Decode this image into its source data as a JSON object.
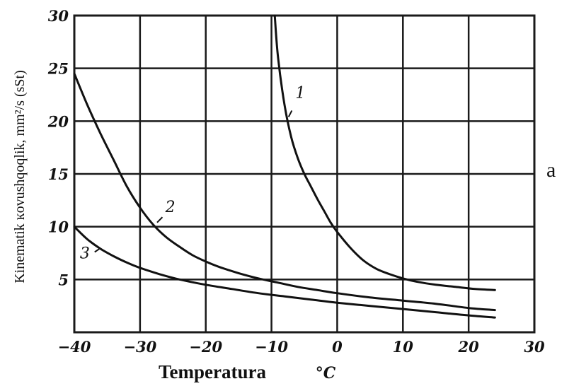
{
  "chart_data": {
    "type": "line",
    "xlabel": "Temperatura",
    "x_unit": "°C",
    "ylabel": "Kinematik ĸovushqoqlik, mm²/s (sSt)",
    "xlim": [
      -40,
      30
    ],
    "ylim": [
      0,
      30
    ],
    "x_ticks": [
      "-40",
      "-30",
      "-20",
      "-10",
      "0",
      "10",
      "20",
      "30"
    ],
    "y_ticks": [
      "5",
      "10",
      "15",
      "20",
      "25",
      "30"
    ],
    "grid": true,
    "series": [
      {
        "name": "1",
        "x": [
          -9.5,
          -9,
          -8,
          -7,
          -6,
          -5,
          -4,
          -3,
          -2,
          -1,
          0,
          2,
          4,
          6,
          8,
          10,
          12,
          15,
          18,
          21,
          24
        ],
        "y": [
          30,
          26,
          21.5,
          18.5,
          16.5,
          15,
          13.8,
          12.6,
          11.5,
          10.4,
          9.5,
          8,
          6.8,
          6,
          5.5,
          5.1,
          4.8,
          4.5,
          4.3,
          4.1,
          4.0
        ]
      },
      {
        "name": "2",
        "x": [
          -40,
          -38,
          -36,
          -34,
          -32,
          -30,
          -28,
          -26,
          -24,
          -22,
          -20,
          -18,
          -15,
          -12,
          -9,
          -6,
          -3,
          0,
          5,
          10,
          15,
          20,
          24
        ],
        "y": [
          24.5,
          21.5,
          18.8,
          16.3,
          13.8,
          11.8,
          10.2,
          9.0,
          8.1,
          7.3,
          6.7,
          6.2,
          5.6,
          5.1,
          4.7,
          4.3,
          4.0,
          3.7,
          3.3,
          3.0,
          2.7,
          2.3,
          2.1
        ]
      },
      {
        "name": "3",
        "x": [
          -40,
          -38,
          -36,
          -34,
          -32,
          -30,
          -27,
          -24,
          -20,
          -16,
          -12,
          -8,
          -4,
          0,
          5,
          10,
          15,
          20,
          24
        ],
        "y": [
          10,
          8.8,
          7.9,
          7.2,
          6.6,
          6.1,
          5.5,
          5.0,
          4.5,
          4.1,
          3.7,
          3.4,
          3.1,
          2.8,
          2.5,
          2.2,
          1.9,
          1.6,
          1.4
        ]
      }
    ],
    "annotations": [
      "1",
      "2",
      "3"
    ]
  },
  "side_label": "a"
}
